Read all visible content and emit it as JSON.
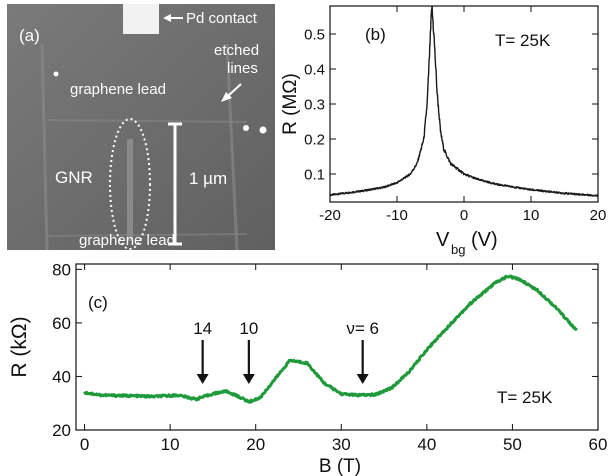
{
  "panel_a": {
    "label": "(a)",
    "pd_contact": "Pd contact",
    "etched_lines_1": "etched",
    "etched_lines_2": "lines",
    "graphene_lead_top": "graphene lead",
    "graphene_lead_bottom": "graphene lead",
    "gnr": "GNR",
    "scale_bar": "1 µm"
  },
  "chart_data": [
    {
      "type": "line",
      "panel": "(b)",
      "xlabel": "V",
      "xlabel_sub": "bg",
      "xlabel_unit": "(V)",
      "ylabel": "R (MΩ)",
      "annotation": "T= 25K",
      "xlim": [
        -20,
        20
      ],
      "ylim": [
        0.02,
        0.58
      ],
      "xticks": [
        "-20",
        "-10",
        "0",
        "10",
        "20"
      ],
      "yticks": [
        "0.1",
        "0.2",
        "0.3",
        "0.4",
        "0.5"
      ],
      "color": "#1a1a1a",
      "x": [
        -20,
        -15,
        -12,
        -10,
        -8,
        -7,
        -6,
        -5.5,
        -5,
        -4.8,
        -4.5,
        -4,
        -3.5,
        -3,
        -2,
        0,
        2,
        5,
        10,
        15,
        20
      ],
      "y": [
        0.04,
        0.052,
        0.062,
        0.075,
        0.1,
        0.13,
        0.2,
        0.3,
        0.5,
        0.58,
        0.5,
        0.33,
        0.22,
        0.17,
        0.13,
        0.1,
        0.085,
        0.07,
        0.055,
        0.045,
        0.038
      ]
    },
    {
      "type": "line",
      "panel": "(c)",
      "xlabel": "B (T)",
      "ylabel": "R (kΩ)",
      "annotation": "T=  25K",
      "xlim": [
        -1,
        60
      ],
      "ylim": [
        20,
        82
      ],
      "xticks": [
        "0",
        "10",
        "20",
        "30",
        "40",
        "50",
        "60"
      ],
      "yticks": [
        "20",
        "40",
        "60",
        "80"
      ],
      "color": "#1f9a3a",
      "arrows": [
        {
          "label": "14",
          "x": 13.8
        },
        {
          "label": "10",
          "x": 19.2
        },
        {
          "label": "ν= 6",
          "x": 32.5
        }
      ],
      "x": [
        0,
        2,
        5,
        8,
        11,
        13,
        15,
        16.5,
        18,
        19.2,
        20.5,
        22,
        24,
        26,
        28,
        30,
        32,
        34,
        36,
        38,
        40,
        42,
        45,
        48,
        49.5,
        51,
        53,
        55,
        57,
        57.5
      ],
      "y": [
        34,
        33,
        32.8,
        32.5,
        33,
        31.5,
        33.5,
        34.5,
        32.5,
        30.5,
        32,
        38,
        46,
        45,
        37.5,
        33.5,
        33,
        33.2,
        36,
        42,
        50,
        57,
        67,
        75,
        77.5,
        76,
        72,
        66,
        59,
        57
      ]
    }
  ]
}
